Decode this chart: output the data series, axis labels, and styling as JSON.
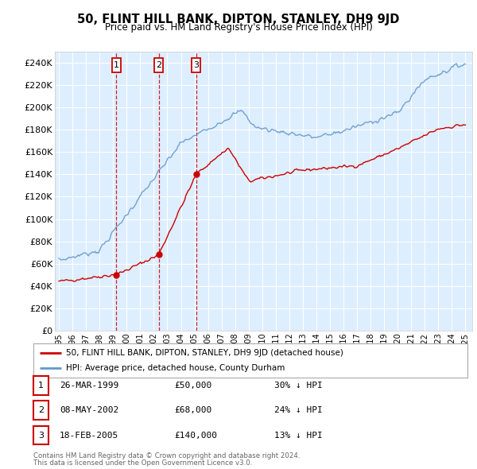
{
  "title": "50, FLINT HILL BANK, DIPTON, STANLEY, DH9 9JD",
  "subtitle": "Price paid vs. HM Land Registry's House Price Index (HPI)",
  "ylim": [
    0,
    250000
  ],
  "yticks": [
    0,
    20000,
    40000,
    60000,
    80000,
    100000,
    120000,
    140000,
    160000,
    180000,
    200000,
    220000,
    240000
  ],
  "ytick_labels": [
    "£0",
    "£20K",
    "£40K",
    "£60K",
    "£80K",
    "£100K",
    "£120K",
    "£140K",
    "£160K",
    "£180K",
    "£200K",
    "£220K",
    "£240K"
  ],
  "sales": [
    {
      "date_num": 1999.24,
      "price": 50000,
      "label": "1",
      "date_str": "26-MAR-1999",
      "price_str": "£50,000",
      "hpi_str": "30% ↓ HPI"
    },
    {
      "date_num": 2002.36,
      "price": 68000,
      "label": "2",
      "date_str": "08-MAY-2002",
      "price_str": "£68,000",
      "hpi_str": "24% ↓ HPI"
    },
    {
      "date_num": 2005.12,
      "price": 140000,
      "label": "3",
      "date_str": "18-FEB-2005",
      "price_str": "£140,000",
      "hpi_str": "13% ↓ HPI"
    }
  ],
  "legend_property": "50, FLINT HILL BANK, DIPTON, STANLEY, DH9 9JD (detached house)",
  "legend_hpi": "HPI: Average price, detached house, County Durham",
  "footer1": "Contains HM Land Registry data © Crown copyright and database right 2024.",
  "footer2": "This data is licensed under the Open Government Licence v3.0.",
  "line_color_property": "#cc0000",
  "line_color_hpi": "#6699cc",
  "plot_bg": "#ddeeff",
  "grid_color": "#ffffff",
  "marker_box_color": "#cc0000",
  "dashed_line_color": "#cc0000",
  "fig_bg": "#ffffff"
}
